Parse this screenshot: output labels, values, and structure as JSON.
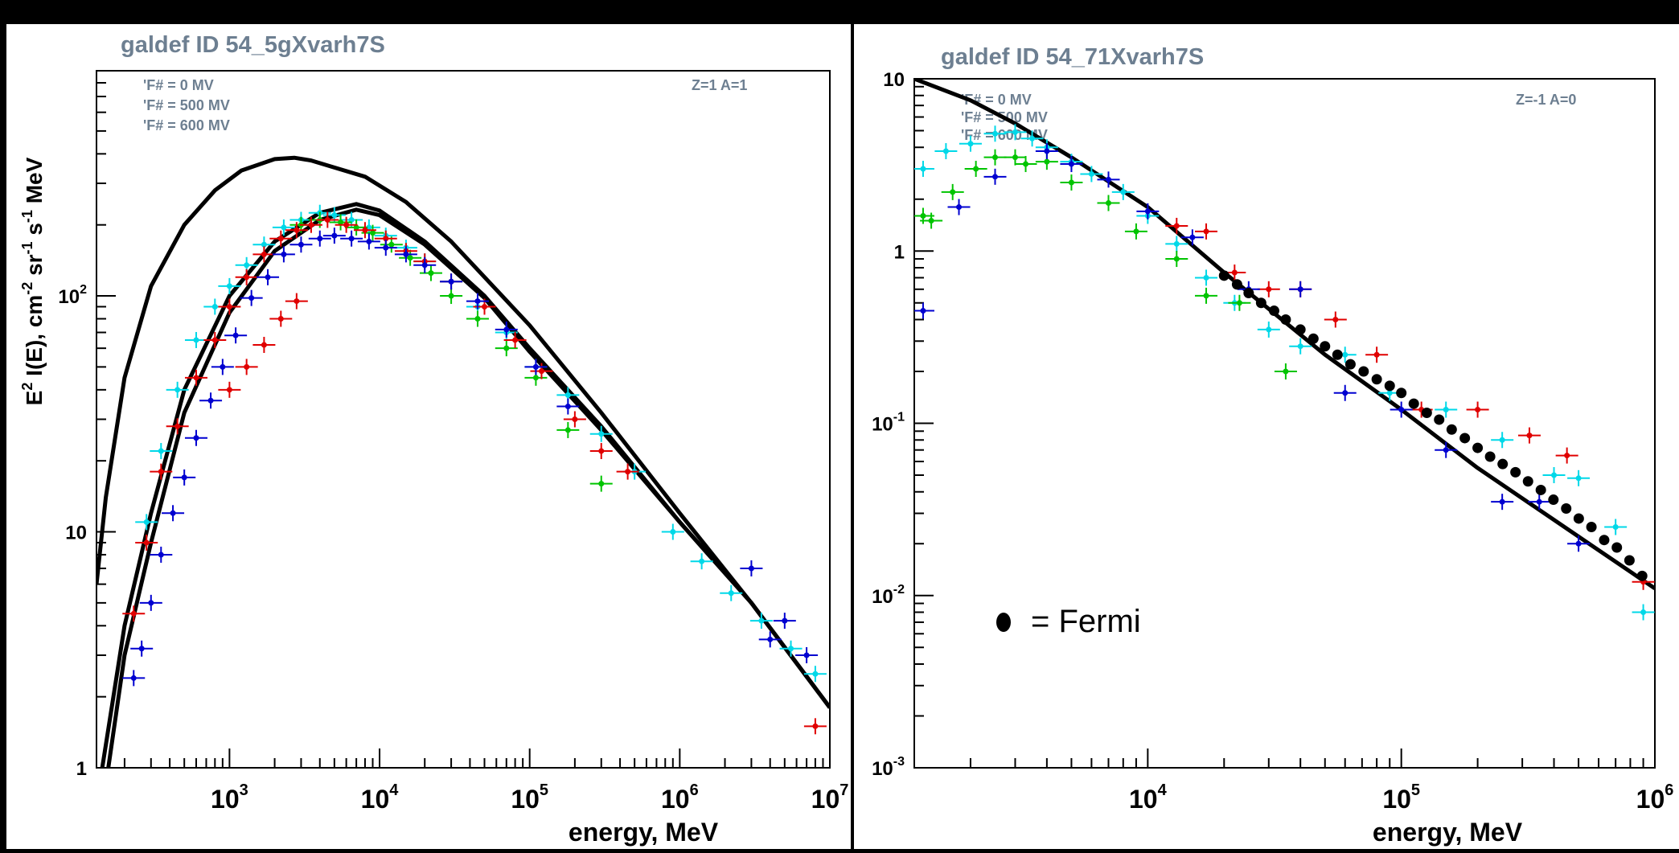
{
  "colors": {
    "page_background": "#000000",
    "panel_background": "#ffffff",
    "title": "#6d7f91",
    "legend_text": "#6d7f91",
    "axis": "#000000",
    "model_line": "#000000",
    "series_cyan": "#00d8e8",
    "series_green": "#00c400",
    "series_red": "#e00000",
    "series_blue": "#0000d0",
    "series_fermi": "#000000"
  },
  "chart_data": [
    {
      "type": "scatter",
      "title": "galdef ID 54_5gXvarh7S",
      "xlabel": "energy, MeV",
      "ylabel": "E² I(E), cm⁻² sr⁻¹ s⁻¹ MeV",
      "x_scale": "log",
      "y_scale": "log",
      "xlim": [
        130,
        10000000
      ],
      "ylim": [
        1,
        900
      ],
      "x_ticks": [
        {
          "value": 1000,
          "label": "10",
          "exp": "3"
        },
        {
          "value": 10000,
          "label": "10",
          "exp": "4"
        },
        {
          "value": 100000,
          "label": "10",
          "exp": "5"
        },
        {
          "value": 1000000,
          "label": "10",
          "exp": "6"
        },
        {
          "value": 10000000,
          "label": "10",
          "exp": "7"
        }
      ],
      "y_ticks": [
        {
          "value": 1,
          "label": "1",
          "exp": ""
        },
        {
          "value": 10,
          "label": "10",
          "exp": ""
        },
        {
          "value": 100,
          "label": "10",
          "exp": "2"
        }
      ],
      "legend": [
        "'F# = 0 MV",
        "'F# = 500 MV",
        "'F# = 600 MV"
      ],
      "legend_position": "top-left",
      "annotation": "Z=1 A=1",
      "model_lines": [
        {
          "x": [
            130,
            150,
            200,
            300,
            500,
            800,
            1200,
            2000,
            2700,
            3500,
            5000,
            8000,
            15000,
            30000,
            100000,
            300000,
            1000000,
            3000000,
            10000000
          ],
          "y": [
            6,
            14,
            45,
            110,
            200,
            280,
            340,
            380,
            385,
            375,
            350,
            320,
            250,
            170,
            75,
            32,
            12,
            5,
            1.8
          ]
        },
        {
          "x": [
            130,
            200,
            300,
            500,
            1000,
            2000,
            4000,
            7000,
            10000,
            20000,
            50000,
            100000,
            300000,
            1000000,
            3000000,
            10000000
          ],
          "y": [
            0.7,
            4,
            12,
            40,
            100,
            170,
            225,
            245,
            230,
            170,
            100,
            60,
            28,
            11,
            5,
            1.8
          ]
        },
        {
          "x": [
            130,
            200,
            300,
            500,
            1000,
            2000,
            4000,
            7000,
            10000,
            20000,
            50000,
            100000,
            300000,
            1000000,
            3000000,
            10000000
          ],
          "y": [
            0.45,
            3,
            9,
            32,
            85,
            155,
            210,
            232,
            220,
            165,
            98,
            58,
            27,
            11,
            5,
            1.8
          ]
        }
      ],
      "series": [
        {
          "color": "cyan",
          "x": [
            280,
            350,
            450,
            600,
            800,
            1000,
            1300,
            1700,
            2300,
            3000,
            4000,
            5000,
            6500,
            8500,
            11000,
            15000,
            20000,
            30000,
            45000,
            70000,
            110000,
            180000,
            300000,
            500000,
            900000,
            1400000,
            2200000,
            3500000,
            5500000,
            8000000
          ],
          "y": [
            11,
            22,
            40,
            65,
            90,
            110,
            135,
            165,
            195,
            210,
            225,
            220,
            210,
            195,
            180,
            160,
            140,
            115,
            90,
            70,
            50,
            38,
            26,
            18,
            10,
            7.5,
            5.5,
            4.2,
            3.2,
            2.5
          ]
        },
        {
          "color": "green",
          "x": [
            3000,
            4000,
            5500,
            7000,
            9000,
            12000,
            16000,
            22000,
            30000,
            45000,
            70000,
            110000,
            180000,
            300000
          ],
          "y": [
            200,
            210,
            205,
            195,
            185,
            165,
            145,
            125,
            100,
            80,
            60,
            45,
            27,
            16
          ]
        },
        {
          "color": "red",
          "x": [
            230,
            280,
            350,
            450,
            600,
            800,
            1000,
            1300,
            1700,
            2200,
            2800,
            3500,
            4500,
            6000,
            8000,
            11000,
            15000,
            20000,
            30000,
            50000,
            80000,
            120000,
            200000,
            300000,
            450000,
            8000000
          ],
          "y": [
            4.5,
            9,
            18,
            28,
            45,
            65,
            90,
            120,
            150,
            175,
            190,
            200,
            210,
            200,
            190,
            175,
            155,
            140,
            115,
            90,
            65,
            48,
            30,
            22,
            18,
            1.5
          ]
        },
        {
          "color": "red",
          "x": [
            1000,
            1300,
            1700,
            2200,
            2800
          ],
          "y": [
            40,
            50,
            62,
            80,
            95
          ]
        },
        {
          "color": "blue",
          "x": [
            230,
            260,
            300,
            350,
            420,
            500,
            600,
            750,
            900,
            1100,
            1400,
            1800,
            2300,
            3000,
            4000,
            5000,
            6500,
            8500,
            11000,
            15000,
            20000,
            30000,
            45000,
            70000,
            110000,
            180000,
            3000000,
            4000000,
            5000000,
            7000000
          ],
          "y": [
            2.4,
            3.2,
            5,
            8,
            12,
            17,
            25,
            36,
            50,
            68,
            98,
            120,
            150,
            165,
            175,
            180,
            175,
            170,
            160,
            150,
            135,
            115,
            95,
            72,
            50,
            34,
            7,
            3.5,
            4.2,
            3
          ]
        }
      ]
    },
    {
      "type": "scatter",
      "title": "galdef ID 54_71Xvarh7S",
      "xlabel": "energy, MeV",
      "ylabel": "",
      "x_scale": "log",
      "y_scale": "log",
      "xlim": [
        1200,
        1000000
      ],
      "ylim": [
        0.001,
        10
      ],
      "x_ticks": [
        {
          "value": 10000,
          "label": "10",
          "exp": "4"
        },
        {
          "value": 100000,
          "label": "10",
          "exp": "5"
        },
        {
          "value": 1000000,
          "label": "10",
          "exp": "6"
        }
      ],
      "y_ticks": [
        {
          "value": 0.001,
          "label": "10",
          "exp": "-3"
        },
        {
          "value": 0.01,
          "label": "10",
          "exp": "-2"
        },
        {
          "value": 0.1,
          "label": "10",
          "exp": "-1"
        },
        {
          "value": 1,
          "label": "1",
          "exp": ""
        },
        {
          "value": 10,
          "label": "10",
          "exp": ""
        }
      ],
      "legend": [
        "'F# = 0 MV",
        "'F# = 500 MV",
        "'F# = 600 MV"
      ],
      "legend_position": "top-left",
      "annotation": "Z=-1 A=0",
      "fermi_label": "= Fermi",
      "model_lines": [
        {
          "x": [
            1200,
            2000,
            3000,
            5000,
            10000,
            20000,
            50000,
            100000,
            200000,
            500000,
            1000000
          ],
          "y": [
            10,
            7.5,
            5.5,
            3.5,
            1.8,
            0.75,
            0.25,
            0.12,
            0.055,
            0.022,
            0.011
          ]
        }
      ],
      "series": [
        {
          "color": "cyan",
          "x": [
            1300,
            1600,
            2000,
            2500,
            3000,
            3500,
            4000,
            5000,
            6000,
            8000,
            10000,
            13000,
            17000,
            22000,
            30000,
            40000,
            60000,
            90000,
            150000,
            250000,
            400000,
            500000,
            700000,
            900000
          ],
          "y": [
            3,
            3.8,
            4.2,
            4.8,
            4.9,
            4.5,
            4,
            3.3,
            2.8,
            2.2,
            1.6,
            1.1,
            0.7,
            0.5,
            0.35,
            0.28,
            0.25,
            0.15,
            0.12,
            0.08,
            0.05,
            0.048,
            0.025,
            0.008
          ]
        },
        {
          "color": "green",
          "x": [
            1300,
            1400,
            1700,
            2100,
            2500,
            3000,
            3300,
            4000,
            5000,
            7000,
            9000,
            13000,
            17000,
            23000,
            35000
          ],
          "y": [
            1.6,
            1.5,
            2.2,
            3,
            3.5,
            3.5,
            3.2,
            3.3,
            2.5,
            1.9,
            1.3,
            0.9,
            0.55,
            0.5,
            0.2
          ]
        },
        {
          "color": "red",
          "x": [
            13000,
            17000,
            22000,
            30000,
            40000,
            55000,
            80000,
            120000,
            200000,
            320000,
            450000,
            900000
          ],
          "y": [
            1.4,
            1.3,
            0.75,
            0.6,
            0.6,
            0.4,
            0.25,
            0.12,
            0.12,
            0.085,
            0.065,
            0.012
          ]
        },
        {
          "color": "blue",
          "x": [
            1300,
            1800,
            2500,
            4000,
            5000,
            7000,
            10000,
            15000,
            25000,
            40000,
            60000,
            100000,
            150000,
            250000,
            350000,
            500000
          ],
          "y": [
            0.45,
            1.8,
            2.7,
            3.8,
            3.2,
            2.6,
            1.7,
            1.2,
            0.6,
            0.6,
            0.15,
            0.12,
            0.07,
            0.035,
            0.035,
            0.02
          ]
        },
        {
          "color": "fermi",
          "x": [
            20000,
            22500,
            25000,
            28000,
            31500,
            35000,
            40000,
            45000,
            50000,
            56000,
            63000,
            71000,
            80000,
            90000,
            100000,
            112000,
            126000,
            141000,
            158000,
            178000,
            200000,
            224000,
            251000,
            282000,
            316000,
            355000,
            398000,
            447000,
            501000,
            562000,
            631000,
            708000,
            794000,
            891000
          ],
          "y": [
            0.72,
            0.64,
            0.57,
            0.5,
            0.45,
            0.4,
            0.35,
            0.31,
            0.28,
            0.25,
            0.22,
            0.2,
            0.18,
            0.165,
            0.15,
            0.13,
            0.115,
            0.105,
            0.092,
            0.082,
            0.072,
            0.064,
            0.058,
            0.052,
            0.046,
            0.041,
            0.036,
            0.032,
            0.028,
            0.025,
            0.021,
            0.019,
            0.016,
            0.013
          ]
        }
      ]
    }
  ]
}
